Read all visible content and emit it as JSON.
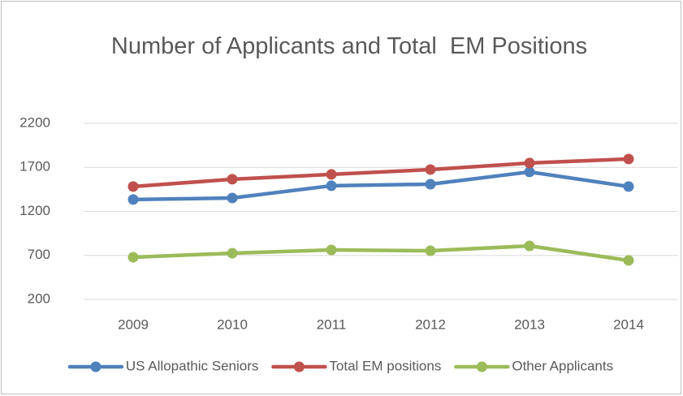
{
  "chart_data": {
    "type": "line",
    "title": "Number of Applicants and Total  EM Positions",
    "categories": [
      "2009",
      "2010",
      "2011",
      "2012",
      "2013",
      "2014"
    ],
    "series": [
      {
        "name": "US Allopathic Seniors",
        "color": "#4f81bd",
        "values": [
          1335,
          1352,
          1491,
          1509,
          1648,
          1482
        ]
      },
      {
        "name": "Total EM positions",
        "color": "#c0504d",
        "values": [
          1482,
          1565,
          1620,
          1675,
          1749,
          1795
        ]
      },
      {
        "name": "Other Applicants",
        "color": "#9bbb59",
        "values": [
          679,
          725,
          762,
          753,
          808,
          643
        ]
      }
    ],
    "ylim": [
      200,
      2200
    ],
    "yticks": [
      200,
      700,
      1200,
      1700,
      2200
    ],
    "grid": true,
    "legend": "bottom"
  }
}
